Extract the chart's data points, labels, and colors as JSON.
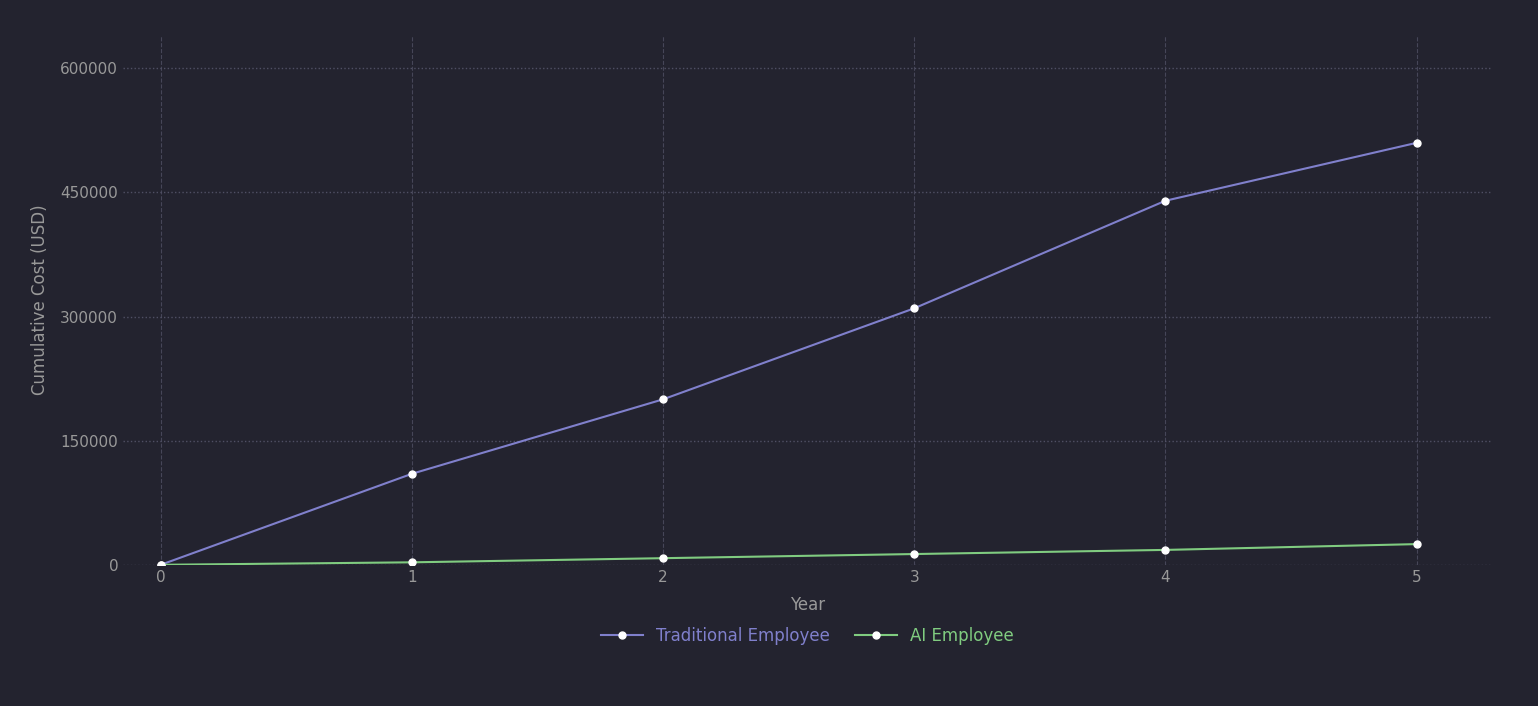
{
  "traditional_x": [
    0,
    1,
    2,
    3,
    4,
    5
  ],
  "traditional_y": [
    0,
    110000,
    200000,
    310000,
    440000,
    510000
  ],
  "ai_x": [
    0,
    1,
    2,
    3,
    4,
    5
  ],
  "ai_y": [
    0,
    3000,
    8000,
    13000,
    18000,
    25000
  ],
  "traditional_color": "#8080cc",
  "ai_color": "#80cc80",
  "background_color": "#23232f",
  "plot_bg_color": "#23232f",
  "grid_color": "#55556a",
  "text_color": "#999999",
  "xlabel": "Year",
  "ylabel": "Cumulative Cost (USD)",
  "yticks": [
    0,
    150000,
    300000,
    450000,
    600000
  ],
  "xticks": [
    0,
    1,
    2,
    3,
    4,
    5
  ],
  "ylim": [
    0,
    640000
  ],
  "xlim": [
    -0.15,
    5.3
  ],
  "legend_traditional": "Traditional Employee",
  "legend_ai": "AI Employee",
  "marker_color": "white",
  "marker": "o",
  "marker_size": 5,
  "line_width": 1.5,
  "figsize": [
    15.38,
    7.06
  ],
  "dpi": 100
}
